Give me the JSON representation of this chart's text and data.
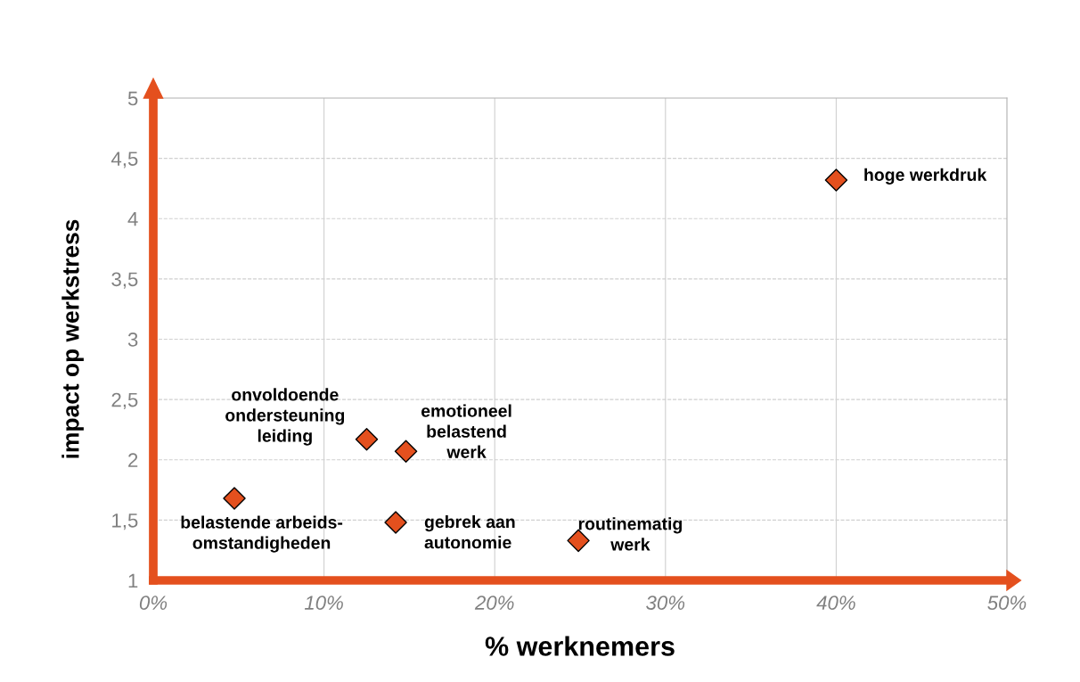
{
  "chart_data": {
    "type": "scatter",
    "xlabel": "% werknemers",
    "ylabel": "impact op werkstress",
    "x": [
      40,
      12.5,
      14.8,
      4.75,
      14.2,
      24.9
    ],
    "series": [
      {
        "color": "#e4501e",
        "values": [
          4.32,
          2.17,
          2.07,
          1.68,
          1.48,
          1.33
        ]
      }
    ],
    "marker": "diamond",
    "xlim": [
      0,
      50
    ],
    "xticks": [
      {
        "value": 0,
        "label": "0%"
      },
      {
        "value": 10,
        "label": "10%"
      },
      {
        "value": 20,
        "label": "20%"
      },
      {
        "value": 30,
        "label": "30%"
      },
      {
        "value": 40,
        "label": "40%"
      },
      {
        "value": 50,
        "label": "50%"
      }
    ],
    "ylim": [
      1,
      5
    ],
    "yticks": [
      {
        "value": 1,
        "label": "1"
      },
      {
        "value": 1.5,
        "label": "1,5"
      },
      {
        "value": 2,
        "label": "2"
      },
      {
        "value": 2.5,
        "label": "2,5"
      },
      {
        "value": 3,
        "label": "3"
      },
      {
        "value": 3.5,
        "label": "3,5"
      },
      {
        "value": 4,
        "label": "4"
      },
      {
        "value": 4.5,
        "label": "4,5"
      },
      {
        "value": 5,
        "label": "5"
      }
    ],
    "grid": true,
    "annotations": [
      {
        "text": "hoge werkdruk",
        "x": 40,
        "y": 4.32
      },
      {
        "text": "onvoldoende\nondersteuning\nleiding",
        "x": 12.5,
        "y": 2.17
      },
      {
        "text": "emotioneel\nbelastend\nwerk",
        "x": 14.8,
        "y": 2.07
      },
      {
        "text": "belastende arbeids-\nomstandigheden",
        "x": 4.75,
        "y": 1.68
      },
      {
        "text": "gebrek aan\nautonomie",
        "x": 14.2,
        "y": 1.48
      },
      {
        "text": "routinematig\nwerk",
        "x": 24.9,
        "y": 1.33
      }
    ]
  }
}
